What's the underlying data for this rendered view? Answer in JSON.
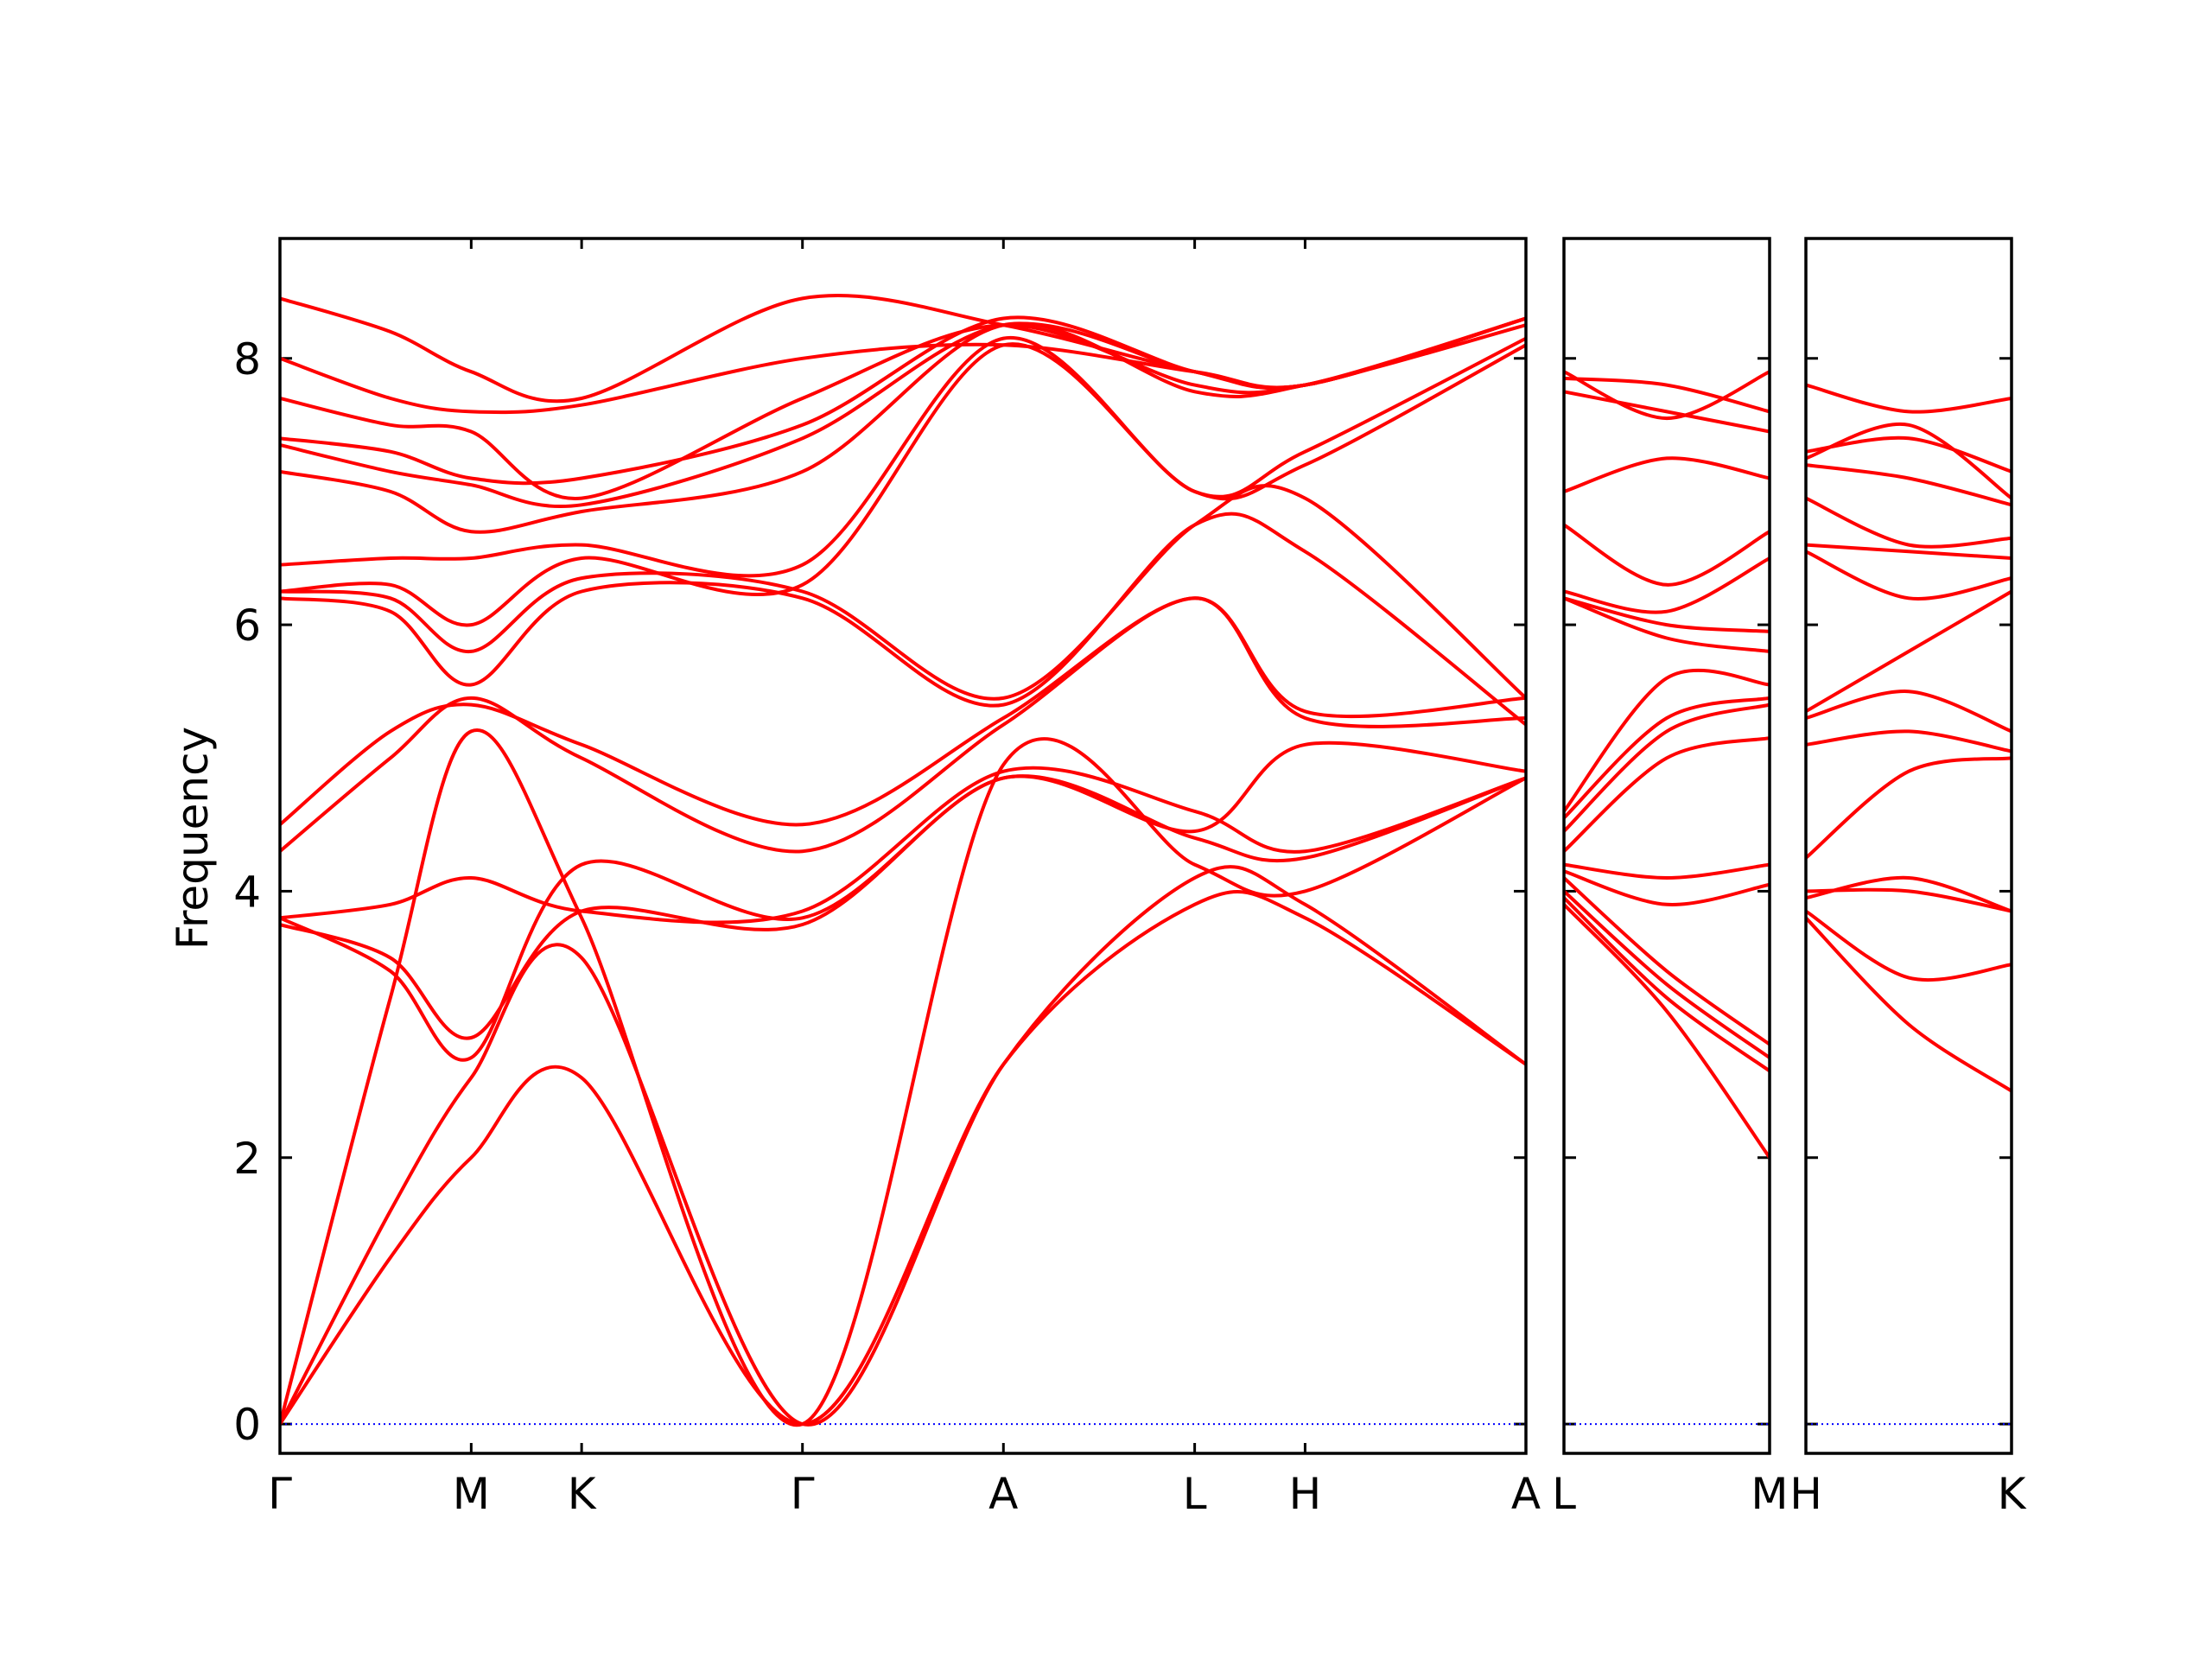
{
  "chart_data": {
    "type": "line",
    "ylabel": "Frequency",
    "ylim": [
      -0.22,
      8.9
    ],
    "yticks": [
      0,
      2,
      4,
      6,
      8
    ],
    "zero_line": true,
    "colors": {
      "band": "#ff0000",
      "zero": "#0000ff",
      "axis": "#000000"
    },
    "panels": [
      {
        "name": "Γ-M-K-Γ-A-L-H-A",
        "tick_labels": [
          "Γ",
          "M",
          "K",
          "Γ",
          "A",
          "L",
          "H",
          "A"
        ],
        "tick_positions": [
          0,
          0.866,
          1.366,
          2.366,
          3.276,
          4.142,
          4.642,
          5.642
        ],
        "bands": [
          {
            "x": [
              0,
              0.5,
              0.866,
              1.366,
              2.366,
              3.276,
              4.142,
              4.642,
              5.642
            ],
            "y": [
              0,
              1.25,
              2.0,
              2.6,
              0,
              2.7,
              3.9,
              3.8,
              2.7
            ]
          },
          {
            "x": [
              0,
              0.5,
              0.866,
              1.366,
              2.366,
              3.276,
              4.142,
              4.642,
              5.642
            ],
            "y": [
              0,
              1.6,
              2.6,
              3.5,
              0,
              2.7,
              4.1,
              3.9,
              2.7
            ]
          },
          {
            "x": [
              0,
              0.5,
              0.866,
              1.366,
              2.366,
              3.276,
              4.142,
              4.642,
              5.642
            ],
            "y": [
              0,
              3.2,
              5.2,
              3.8,
              0,
              4.95,
              4.2,
              4.0,
              4.85
            ]
          },
          {
            "x": [
              0,
              0.5,
              0.866,
              1.366,
              2.366,
              3.276,
              4.142,
              4.642,
              5.642
            ],
            "y": [
              3.75,
              3.5,
              2.9,
              3.85,
              3.75,
              4.85,
              4.4,
              4.25,
              4.85
            ]
          },
          {
            "x": [
              0,
              0.5,
              0.866,
              1.366,
              2.366,
              3.276,
              4.142,
              4.642,
              5.642
            ],
            "y": [
              3.8,
              3.4,
              2.75,
              4.2,
              3.8,
              4.85,
              4.45,
              5.1,
              4.9
            ]
          },
          {
            "x": [
              0,
              0.5,
              0.866,
              1.366,
              2.366,
              3.276,
              4.142,
              4.642,
              5.642
            ],
            "y": [
              3.8,
              3.9,
              4.1,
              3.85,
              3.85,
              4.9,
              4.6,
              4.3,
              4.85
            ]
          },
          {
            "x": [
              0,
              0.5,
              0.866,
              1.366,
              2.366,
              3.276,
              4.142,
              4.642,
              5.642
            ],
            "y": [
              4.3,
              5.0,
              5.45,
              5.0,
              4.3,
              5.25,
              6.2,
              5.3,
              5.3
            ]
          },
          {
            "x": [
              0,
              0.5,
              0.866,
              1.366,
              2.366,
              3.276,
              4.142,
              4.642,
              5.642
            ],
            "y": [
              4.5,
              5.2,
              5.4,
              5.1,
              4.5,
              5.3,
              6.2,
              5.35,
              5.45
            ]
          },
          {
            "x": [
              0,
              0.5,
              0.866,
              1.366,
              2.366,
              3.276,
              4.142,
              4.642,
              5.642
            ],
            "y": [
              6.2,
              6.1,
              5.55,
              6.25,
              6.2,
              5.4,
              6.75,
              6.55,
              5.25
            ]
          },
          {
            "x": [
              0,
              0.5,
              0.866,
              1.366,
              2.366,
              3.276,
              4.142,
              4.642,
              5.642
            ],
            "y": [
              6.25,
              6.2,
              5.8,
              6.35,
              6.25,
              5.45,
              6.75,
              6.95,
              5.45
            ]
          },
          {
            "x": [
              0,
              0.5,
              0.866,
              1.366,
              2.366,
              3.276,
              4.142,
              4.642,
              5.642
            ],
            "y": [
              6.25,
              6.3,
              6.0,
              6.5,
              6.3,
              8.1,
              7.0,
              7.2,
              8.1
            ]
          },
          {
            "x": [
              0,
              0.5,
              0.866,
              1.366,
              2.366,
              3.276,
              4.142,
              4.642,
              5.642
            ],
            "y": [
              6.45,
              6.5,
              6.5,
              6.6,
              6.45,
              8.15,
              7.0,
              7.3,
              8.15
            ]
          },
          {
            "x": [
              0,
              0.5,
              0.866,
              1.366,
              2.366,
              3.276,
              4.142,
              4.642,
              5.642
            ],
            "y": [
              7.15,
              7.0,
              6.7,
              6.85,
              7.15,
              8.25,
              7.75,
              7.8,
              8.25
            ]
          },
          {
            "x": [
              0,
              0.5,
              0.866,
              1.366,
              2.366,
              3.276,
              4.142,
              4.642,
              5.642
            ],
            "y": [
              7.35,
              7.15,
              7.05,
              6.9,
              7.4,
              8.25,
              7.9,
              7.8,
              8.3
            ]
          },
          {
            "x": [
              0,
              0.5,
              0.866,
              1.366,
              2.366,
              3.276,
              4.142,
              4.642,
              5.642
            ],
            "y": [
              7.4,
              7.3,
              7.1,
              7.1,
              7.5,
              8.3,
              7.9,
              7.8,
              8.3
            ]
          },
          {
            "x": [
              0,
              0.5,
              0.866,
              1.366,
              2.366,
              3.276,
              4.142,
              4.642,
              5.642
            ],
            "y": [
              7.7,
              7.5,
              7.45,
              6.95,
              7.7,
              8.25,
              7.8,
              7.8,
              8.3
            ]
          },
          {
            "x": [
              0,
              0.5,
              0.866,
              1.366,
              2.366,
              3.276,
              4.142,
              4.642,
              5.642
            ],
            "y": [
              8.0,
              7.7,
              7.6,
              7.65,
              8.0,
              8.1,
              7.9,
              7.8,
              8.3
            ]
          },
          {
            "x": [
              0,
              0.5,
              0.866,
              1.366,
              2.366,
              3.276,
              4.142,
              4.642,
              5.642
            ],
            "y": [
              8.45,
              8.2,
              7.9,
              7.7,
              8.45,
              8.25,
              7.9,
              7.8,
              8.3
            ]
          }
        ]
      },
      {
        "name": "L-M",
        "tick_labels": [
          "L",
          "M"
        ],
        "tick_positions": [
          0,
          1
        ],
        "bands": [
          {
            "x": [
              0,
              0.5,
              1
            ],
            "y": [
              3.9,
              3.1,
              2.0
            ]
          },
          {
            "x": [
              0,
              0.5,
              1
            ],
            "y": [
              3.95,
              3.2,
              2.65
            ]
          },
          {
            "x": [
              0,
              0.5,
              1
            ],
            "y": [
              4.0,
              3.3,
              2.75
            ]
          },
          {
            "x": [
              0,
              0.5,
              1
            ],
            "y": [
              4.1,
              3.4,
              2.85
            ]
          },
          {
            "x": [
              0,
              0.5,
              1
            ],
            "y": [
              4.15,
              3.9,
              4.05
            ]
          },
          {
            "x": [
              0,
              0.5,
              1
            ],
            "y": [
              4.2,
              4.1,
              4.2
            ]
          },
          {
            "x": [
              0,
              0.5,
              1
            ],
            "y": [
              4.3,
              5.0,
              5.15
            ]
          },
          {
            "x": [
              0,
              0.5,
              1
            ],
            "y": [
              4.45,
              5.2,
              5.4
            ]
          },
          {
            "x": [
              0,
              0.5,
              1
            ],
            "y": [
              4.55,
              5.3,
              5.45
            ]
          },
          {
            "x": [
              0,
              0.5,
              1
            ],
            "y": [
              4.6,
              5.6,
              5.55
            ]
          },
          {
            "x": [
              0,
              0.5,
              1
            ],
            "y": [
              6.2,
              5.9,
              5.8
            ]
          },
          {
            "x": [
              0,
              0.5,
              1
            ],
            "y": [
              6.2,
              6.0,
              5.95
            ]
          },
          {
            "x": [
              0,
              0.5,
              1
            ],
            "y": [
              6.25,
              6.1,
              6.5
            ]
          },
          {
            "x": [
              0,
              0.5,
              1
            ],
            "y": [
              6.75,
              6.3,
              6.7
            ]
          },
          {
            "x": [
              0,
              0.5,
              1
            ],
            "y": [
              7.0,
              7.25,
              7.1
            ]
          },
          {
            "x": [
              0,
              0.5,
              1
            ],
            "y": [
              7.75,
              7.6,
              7.45
            ]
          },
          {
            "x": [
              0,
              0.5,
              1
            ],
            "y": [
              7.85,
              7.8,
              7.6
            ]
          },
          {
            "x": [
              0,
              0.5,
              1
            ],
            "y": [
              7.9,
              7.55,
              7.9
            ]
          }
        ]
      },
      {
        "name": "H-K",
        "tick_labels": [
          "H",
          "K"
        ],
        "tick_positions": [
          0,
          1
        ],
        "bands": [
          {
            "x": [
              0,
              0.5,
              1
            ],
            "y": [
              3.8,
              3.0,
              2.5
            ]
          },
          {
            "x": [
              0,
              0.5,
              1
            ],
            "y": [
              3.85,
              3.35,
              3.45
            ]
          },
          {
            "x": [
              0,
              0.5,
              1
            ],
            "y": [
              3.95,
              4.1,
              3.85
            ]
          },
          {
            "x": [
              0,
              0.5,
              1
            ],
            "y": [
              4.0,
              4.0,
              3.85
            ]
          },
          {
            "x": [
              0,
              0.5,
              1
            ],
            "y": [
              4.25,
              4.9,
              5.0
            ]
          },
          {
            "x": [
              0,
              0.5,
              1
            ],
            "y": [
              5.1,
              5.2,
              5.05
            ]
          },
          {
            "x": [
              0,
              0.5,
              1
            ],
            "y": [
              5.3,
              5.5,
              5.2
            ]
          },
          {
            "x": [
              0,
              0.5,
              1
            ],
            "y": [
              5.35,
              5.8,
              6.25
            ]
          },
          {
            "x": [
              0,
              0.5,
              1
            ],
            "y": [
              6.55,
              6.2,
              6.35
            ]
          },
          {
            "x": [
              0,
              0.5,
              1
            ],
            "y": [
              6.6,
              6.55,
              6.5
            ]
          },
          {
            "x": [
              0,
              0.5,
              1
            ],
            "y": [
              6.95,
              6.6,
              6.65
            ]
          },
          {
            "x": [
              0,
              0.5,
              1
            ],
            "y": [
              7.2,
              7.1,
              6.9
            ]
          },
          {
            "x": [
              0,
              0.5,
              1
            ],
            "y": [
              7.25,
              7.5,
              6.95
            ]
          },
          {
            "x": [
              0,
              0.5,
              1
            ],
            "y": [
              7.3,
              7.4,
              7.15
            ]
          },
          {
            "x": [
              0,
              0.5,
              1
            ],
            "y": [
              7.8,
              7.6,
              7.7
            ]
          }
        ]
      }
    ]
  }
}
